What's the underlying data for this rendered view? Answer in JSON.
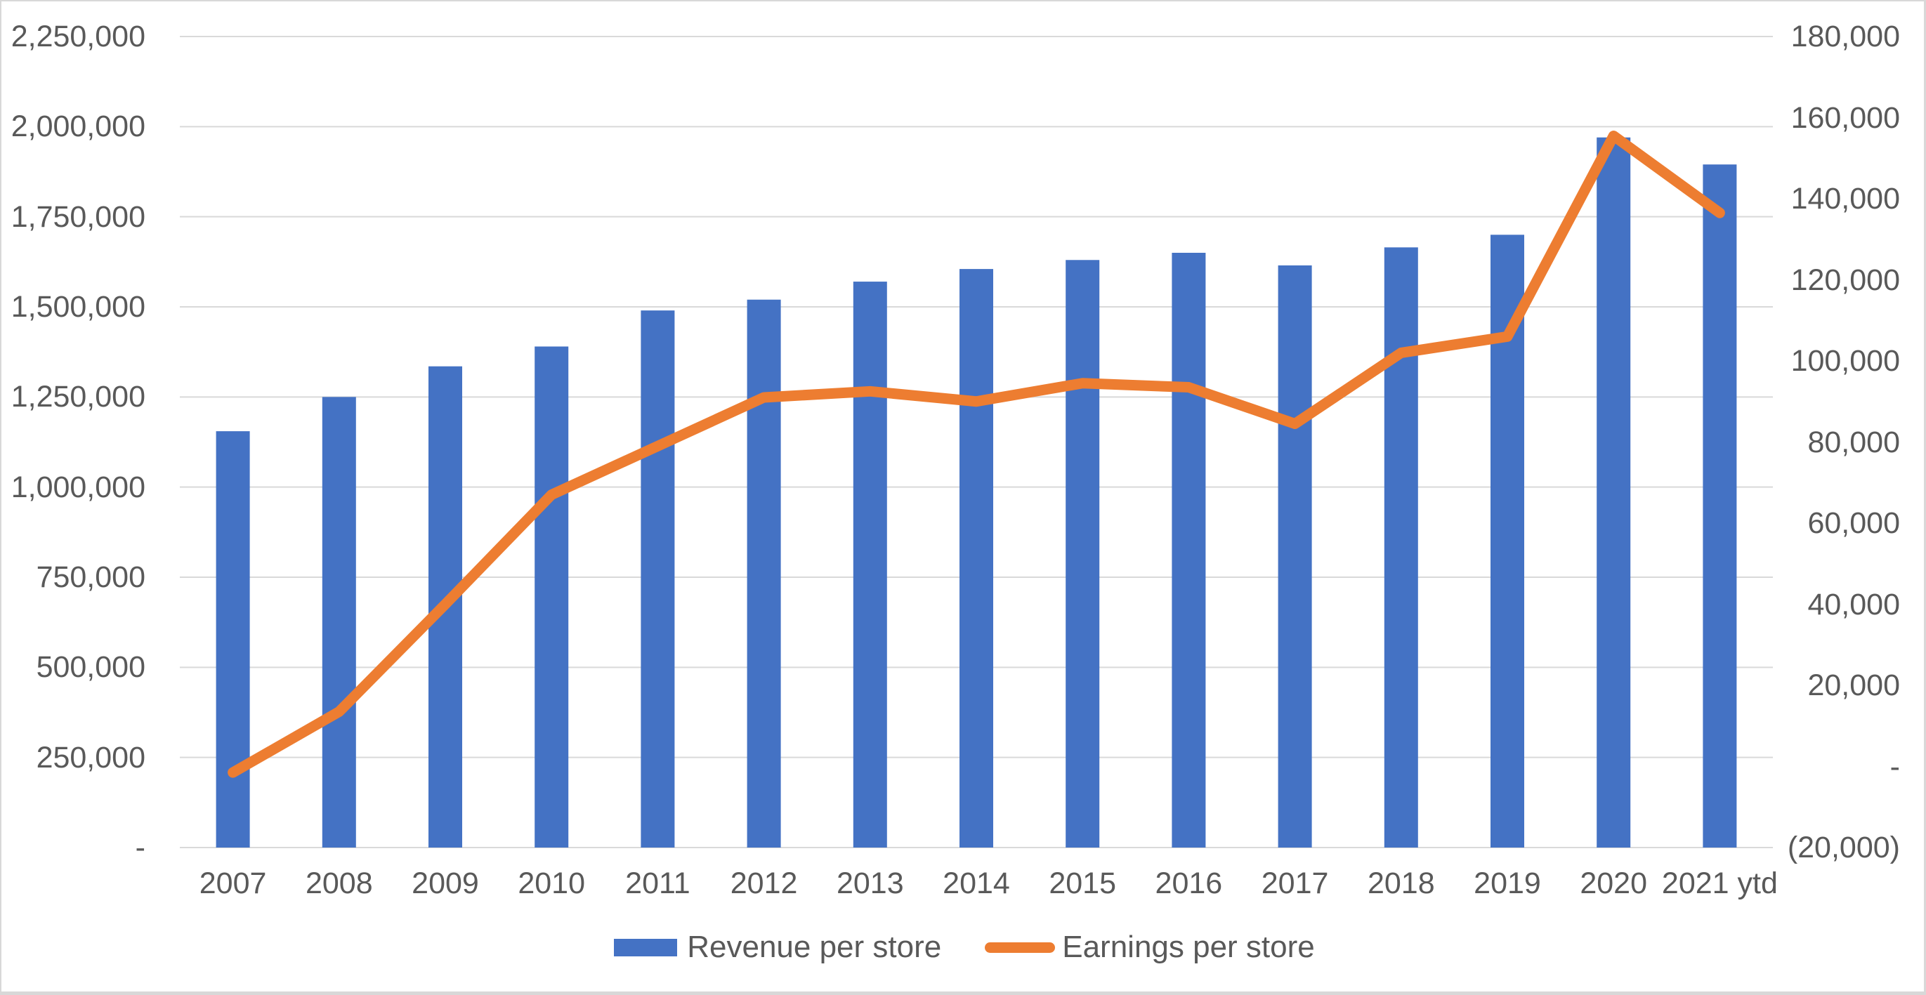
{
  "chart_data": {
    "type": "combo",
    "title": "",
    "categories": [
      "2007",
      "2008",
      "2009",
      "2010",
      "2011",
      "2012",
      "2013",
      "2014",
      "2015",
      "2016",
      "2017",
      "2018",
      "2019",
      "2020",
      "2021 ytd"
    ],
    "series": [
      {
        "name": "Revenue per store",
        "type": "bar",
        "axis": "left",
        "color": "#4472C4",
        "values": [
          1155000,
          1250000,
          1335000,
          1390000,
          1490000,
          1520000,
          1570000,
          1605000,
          1630000,
          1650000,
          1615000,
          1665000,
          1700000,
          1970000,
          1895000
        ]
      },
      {
        "name": "Earnings per store",
        "type": "line",
        "axis": "right",
        "color": "#ED7D31",
        "values": [
          -1500,
          13500,
          40000,
          67000,
          79000,
          91000,
          92500,
          90000,
          94500,
          93500,
          84500,
          102000,
          106000,
          155500,
          136500
        ]
      }
    ],
    "left_axis": {
      "min": 0,
      "max": 2250000,
      "tick_step": 250000,
      "tick_labels_top_to_bottom": [
        "2,250,000",
        "2,000,000",
        "1,750,000",
        "1,500,000",
        "1,250,000",
        "1,000,000",
        "750,000",
        "500,000",
        "250,000",
        "-"
      ]
    },
    "right_axis": {
      "min": -20000,
      "max": 180000,
      "tick_step": 20000,
      "tick_labels_top_to_bottom": [
        "180,000",
        "160,000",
        "140,000",
        "120,000",
        "100,000",
        "80,000",
        "60,000",
        "40,000",
        "20,000",
        "-",
        "(20,000)"
      ]
    },
    "grid": true,
    "legend_position": "bottom"
  },
  "colors": {
    "grid": "#D9D9D9",
    "text": "#595959",
    "frame": "#D8D8D8",
    "background": "#FFFFFF",
    "bar": "#4472C4",
    "line": "#ED7D31"
  }
}
